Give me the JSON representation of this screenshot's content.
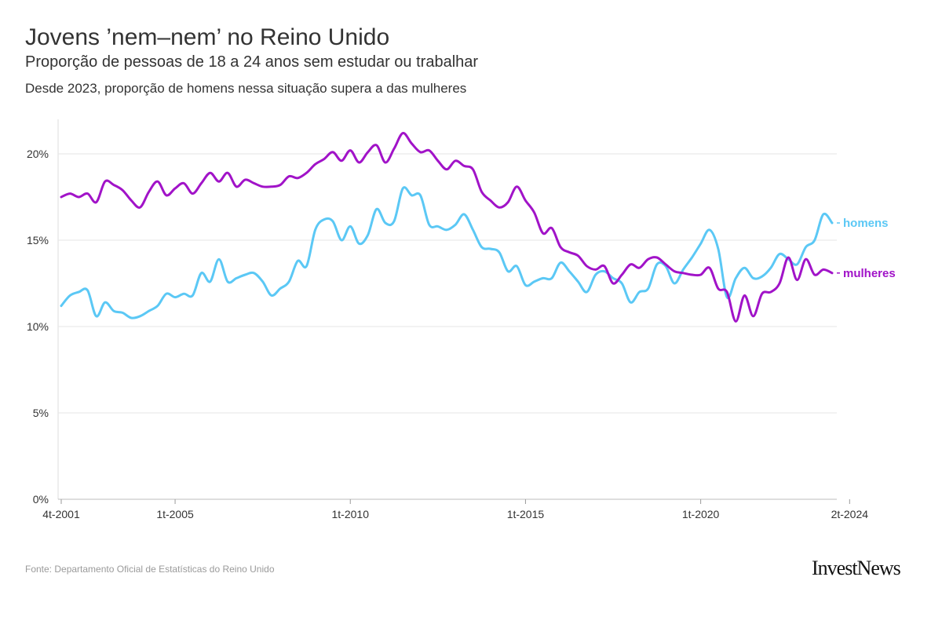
{
  "header": {
    "title": "Jovens ’nem–nem’ no Reino Unido",
    "subtitle": "Proporção de pessoas de 18 a 24 anos sem estudar ou trabalhar",
    "note": "Desde 2023, proporção de homens nessa situação supera a das mulheres"
  },
  "footer": {
    "source": "Fonte: Departamento Oficial de Estatísticas do Reino Unido",
    "brand": "InvestNews"
  },
  "chart_data": {
    "type": "line",
    "x_unit": "quarter",
    "x_start": "4t-2001",
    "x_end": "2t-2024",
    "xticks": [
      "4t-2001",
      "1t-2005",
      "1t-2010",
      "1t-2015",
      "1t-2020",
      "2t-2024"
    ],
    "yticks": [
      "0%",
      "5%",
      "10%",
      "15%",
      "20%"
    ],
    "ylim": [
      0,
      22
    ],
    "grid": true,
    "legend": "end-of-line labels",
    "series": [
      {
        "name": "homens",
        "color": "#5bc8f5",
        "values": [
          11.2,
          11.8,
          12.0,
          12.1,
          10.6,
          11.4,
          10.9,
          10.8,
          10.5,
          10.6,
          10.9,
          11.2,
          11.9,
          11.7,
          11.9,
          11.8,
          13.1,
          12.6,
          13.9,
          12.6,
          12.8,
          13.0,
          13.1,
          12.6,
          11.8,
          12.2,
          12.6,
          13.8,
          13.5,
          15.6,
          16.2,
          16.1,
          15.0,
          15.8,
          14.8,
          15.3,
          16.8,
          16.0,
          16.1,
          18.0,
          17.6,
          17.6,
          15.9,
          15.8,
          15.6,
          15.9,
          16.5,
          15.6,
          14.6,
          14.5,
          14.3,
          13.2,
          13.5,
          12.4,
          12.6,
          12.8,
          12.8,
          13.7,
          13.2,
          12.6,
          12.0,
          13.0,
          13.2,
          12.8,
          12.5,
          11.4,
          12.0,
          12.2,
          13.6,
          13.5,
          12.5,
          13.3,
          14.0,
          14.8,
          15.6,
          14.5,
          11.7,
          12.8,
          13.4,
          12.8,
          12.9,
          13.4,
          14.2,
          13.9,
          13.6,
          14.6,
          15.0,
          16.5,
          16.0
        ]
      },
      {
        "name": "mulheres",
        "color": "#a113c8",
        "values": [
          17.5,
          17.7,
          17.5,
          17.7,
          17.2,
          18.4,
          18.2,
          17.9,
          17.3,
          16.9,
          17.8,
          18.4,
          17.6,
          18.0,
          18.3,
          17.7,
          18.3,
          18.9,
          18.4,
          18.9,
          18.1,
          18.5,
          18.3,
          18.1,
          18.1,
          18.2,
          18.7,
          18.6,
          18.9,
          19.4,
          19.7,
          20.1,
          19.6,
          20.2,
          19.5,
          20.1,
          20.5,
          19.5,
          20.3,
          21.2,
          20.6,
          20.1,
          20.2,
          19.6,
          19.1,
          19.6,
          19.3,
          19.1,
          17.8,
          17.3,
          16.9,
          17.2,
          18.1,
          17.3,
          16.6,
          15.4,
          15.7,
          14.6,
          14.3,
          14.1,
          13.5,
          13.3,
          13.5,
          12.5,
          13.0,
          13.6,
          13.4,
          13.9,
          14.0,
          13.6,
          13.2,
          13.1,
          13.0,
          13.0,
          13.4,
          12.2,
          12.0,
          10.3,
          11.8,
          10.6,
          11.9,
          12.0,
          12.5,
          14.0,
          12.7,
          13.9,
          13.0,
          13.3,
          13.1
        ]
      }
    ]
  }
}
